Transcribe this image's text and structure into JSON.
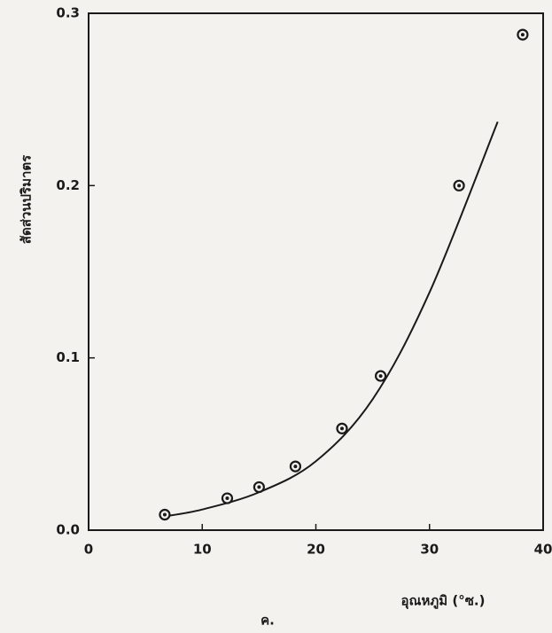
{
  "chart_data": {
    "type": "scatter",
    "x": [
      6.7,
      12.2,
      15.0,
      18.2,
      22.3,
      25.7,
      32.6,
      38.2
    ],
    "values": [
      0.009,
      0.0185,
      0.025,
      0.037,
      0.059,
      0.0895,
      0.2,
      0.2876
    ],
    "fit_x": [
      6.7,
      10,
      15,
      20,
      25,
      30,
      36
    ],
    "fit_values": [
      0.008,
      0.012,
      0.022,
      0.04,
      0.076,
      0.138,
      0.237
    ],
    "color": "#1a1a1a",
    "xlabel": "อุณหภูมิ (°ซ.)",
    "ylabel": "สัดส่วนปริมาตร",
    "caption": "ค.",
    "xlim": [
      0,
      40
    ],
    "xticks": [
      0,
      10,
      20,
      30,
      40
    ],
    "ylim": [
      0,
      0.3
    ],
    "yticks": [
      {
        "value": 0,
        "label": "0.0"
      },
      0.1,
      0.2,
      0.3
    ]
  }
}
